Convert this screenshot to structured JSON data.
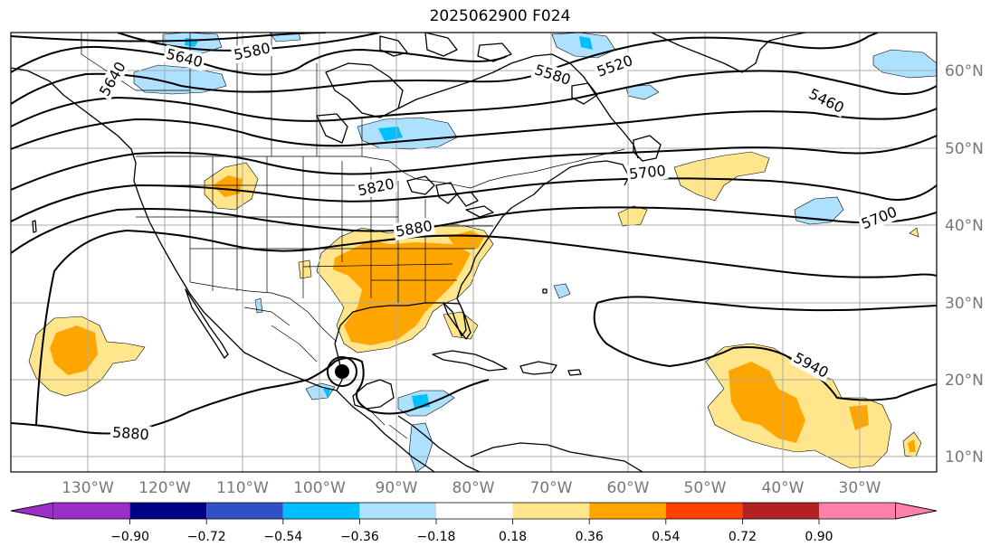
{
  "title": "2025062900 F024",
  "lon_labels": [
    "130°W",
    "120°W",
    "110°W",
    "100°W",
    "90°W",
    "80°W",
    "70°W",
    "60°W",
    "50°W",
    "40°W",
    "30°W"
  ],
  "lat_labels": [
    "60°N",
    "50°N",
    "40°N",
    "30°N",
    "20°N",
    "10°N"
  ],
  "contour_labels": [
    "5640",
    "5580",
    "5640",
    "5520",
    "5580",
    "5460",
    "5820",
    "5700",
    "5880",
    "5700",
    "5940",
    "5880"
  ],
  "colorbar": {
    "ticks": [
      "−0.90",
      "−0.72",
      "−0.54",
      "−0.36",
      "−0.18",
      "0.18",
      "0.36",
      "0.54",
      "0.72",
      "0.90"
    ],
    "colors": [
      "#9b30c8",
      "#00008b",
      "#3050c8",
      "#00bfff",
      "#aee0ff",
      "#ffffff",
      "#ffe68c",
      "#ffa500",
      "#ff4000",
      "#b22222",
      "#ff80aa"
    ]
  },
  "fill_colors": {
    "pos_light": "#ffe68c",
    "pos_mid": "#ffa500",
    "neg_light": "#aee0ff",
    "neg_mid": "#00bfff"
  }
}
